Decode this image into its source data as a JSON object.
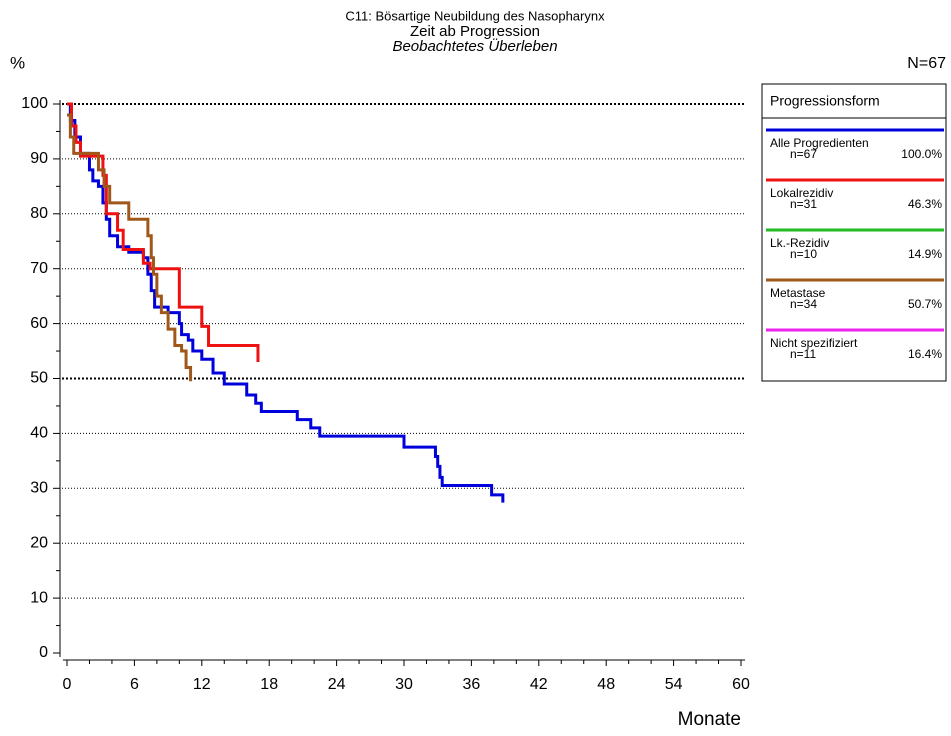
{
  "chart_data": {
    "type": "step",
    "title": "C11: Bösartige Neubildung des Nasopharynx",
    "subtitle": "Zeit ab Progression",
    "subtitle2": "Beobachtetes Überleben",
    "y_label": "%",
    "x_label": "Monate",
    "n_total": "N=67",
    "legend_title": "Progressionsform",
    "xlim": [
      0,
      60
    ],
    "xticks": [
      0,
      6,
      12,
      18,
      24,
      30,
      36,
      42,
      48,
      54,
      60
    ],
    "ylim": [
      0,
      100
    ],
    "yticks": [
      0,
      10,
      20,
      30,
      40,
      50,
      60,
      70,
      80,
      90,
      100
    ],
    "grid": true,
    "series": [
      {
        "name": "Alle Progredienten",
        "n": "n=67",
        "percent": "100.0%",
        "color": "#0000dd",
        "x": [
          0,
          0.3,
          0.7,
          1.2,
          2,
          2.3,
          2.8,
          3.2,
          3.5,
          3.8,
          4.5,
          5.5,
          6.8,
          7.2,
          7.5,
          7.8,
          9,
          10,
          10.2,
          10.8,
          11.2,
          12,
          13,
          14,
          16,
          16.8,
          17.3,
          20.5,
          21.7,
          22.5,
          30,
          32.8,
          33,
          33.2,
          33.4,
          37.8,
          38.8
        ],
        "values": [
          100,
          97,
          94,
          91,
          88,
          86,
          85,
          82,
          79,
          76,
          74,
          73,
          72,
          69,
          66,
          63,
          62,
          60,
          58,
          57,
          55,
          53.5,
          51,
          49,
          47,
          45.5,
          44,
          42.5,
          41,
          39.5,
          37.5,
          35.8,
          34,
          32,
          30.5,
          28.8,
          27.4
        ]
      },
      {
        "name": "Lokalrezidiv",
        "n": "n=31",
        "percent": "46.3%",
        "color": "#ee1111",
        "x": [
          0,
          0.4,
          0.8,
          1.2,
          3.2,
          3.5,
          4.5,
          5,
          6.8,
          7.4,
          10,
          12,
          12.6,
          17
        ],
        "values": [
          100,
          96,
          93,
          90.5,
          87,
          80,
          77,
          73.5,
          71,
          70,
          63,
          59.5,
          56,
          53
        ]
      },
      {
        "name": "Lk.-Rezidiv",
        "n": "n=10",
        "percent": "14.9%",
        "color": "#22bb22",
        "x": [],
        "values": []
      },
      {
        "name": "Metastase",
        "n": "n=34",
        "percent": "50.7%",
        "color": "#a0581a",
        "x": [
          0,
          0.3,
          0.6,
          2.8,
          3.3,
          3.8,
          5.5,
          7.2,
          7.5,
          7.7,
          8,
          8.4,
          9,
          9.6,
          10.2,
          10.6,
          11
        ],
        "values": [
          98,
          94,
          91,
          88,
          85,
          82,
          79,
          76,
          72,
          69,
          65,
          62,
          59,
          56,
          55,
          52,
          49.5
        ]
      },
      {
        "name": "Nicht spezifiziert",
        "n": "n=11",
        "percent": "16.4%",
        "color": "#ee22ee",
        "x": [],
        "values": []
      }
    ]
  }
}
